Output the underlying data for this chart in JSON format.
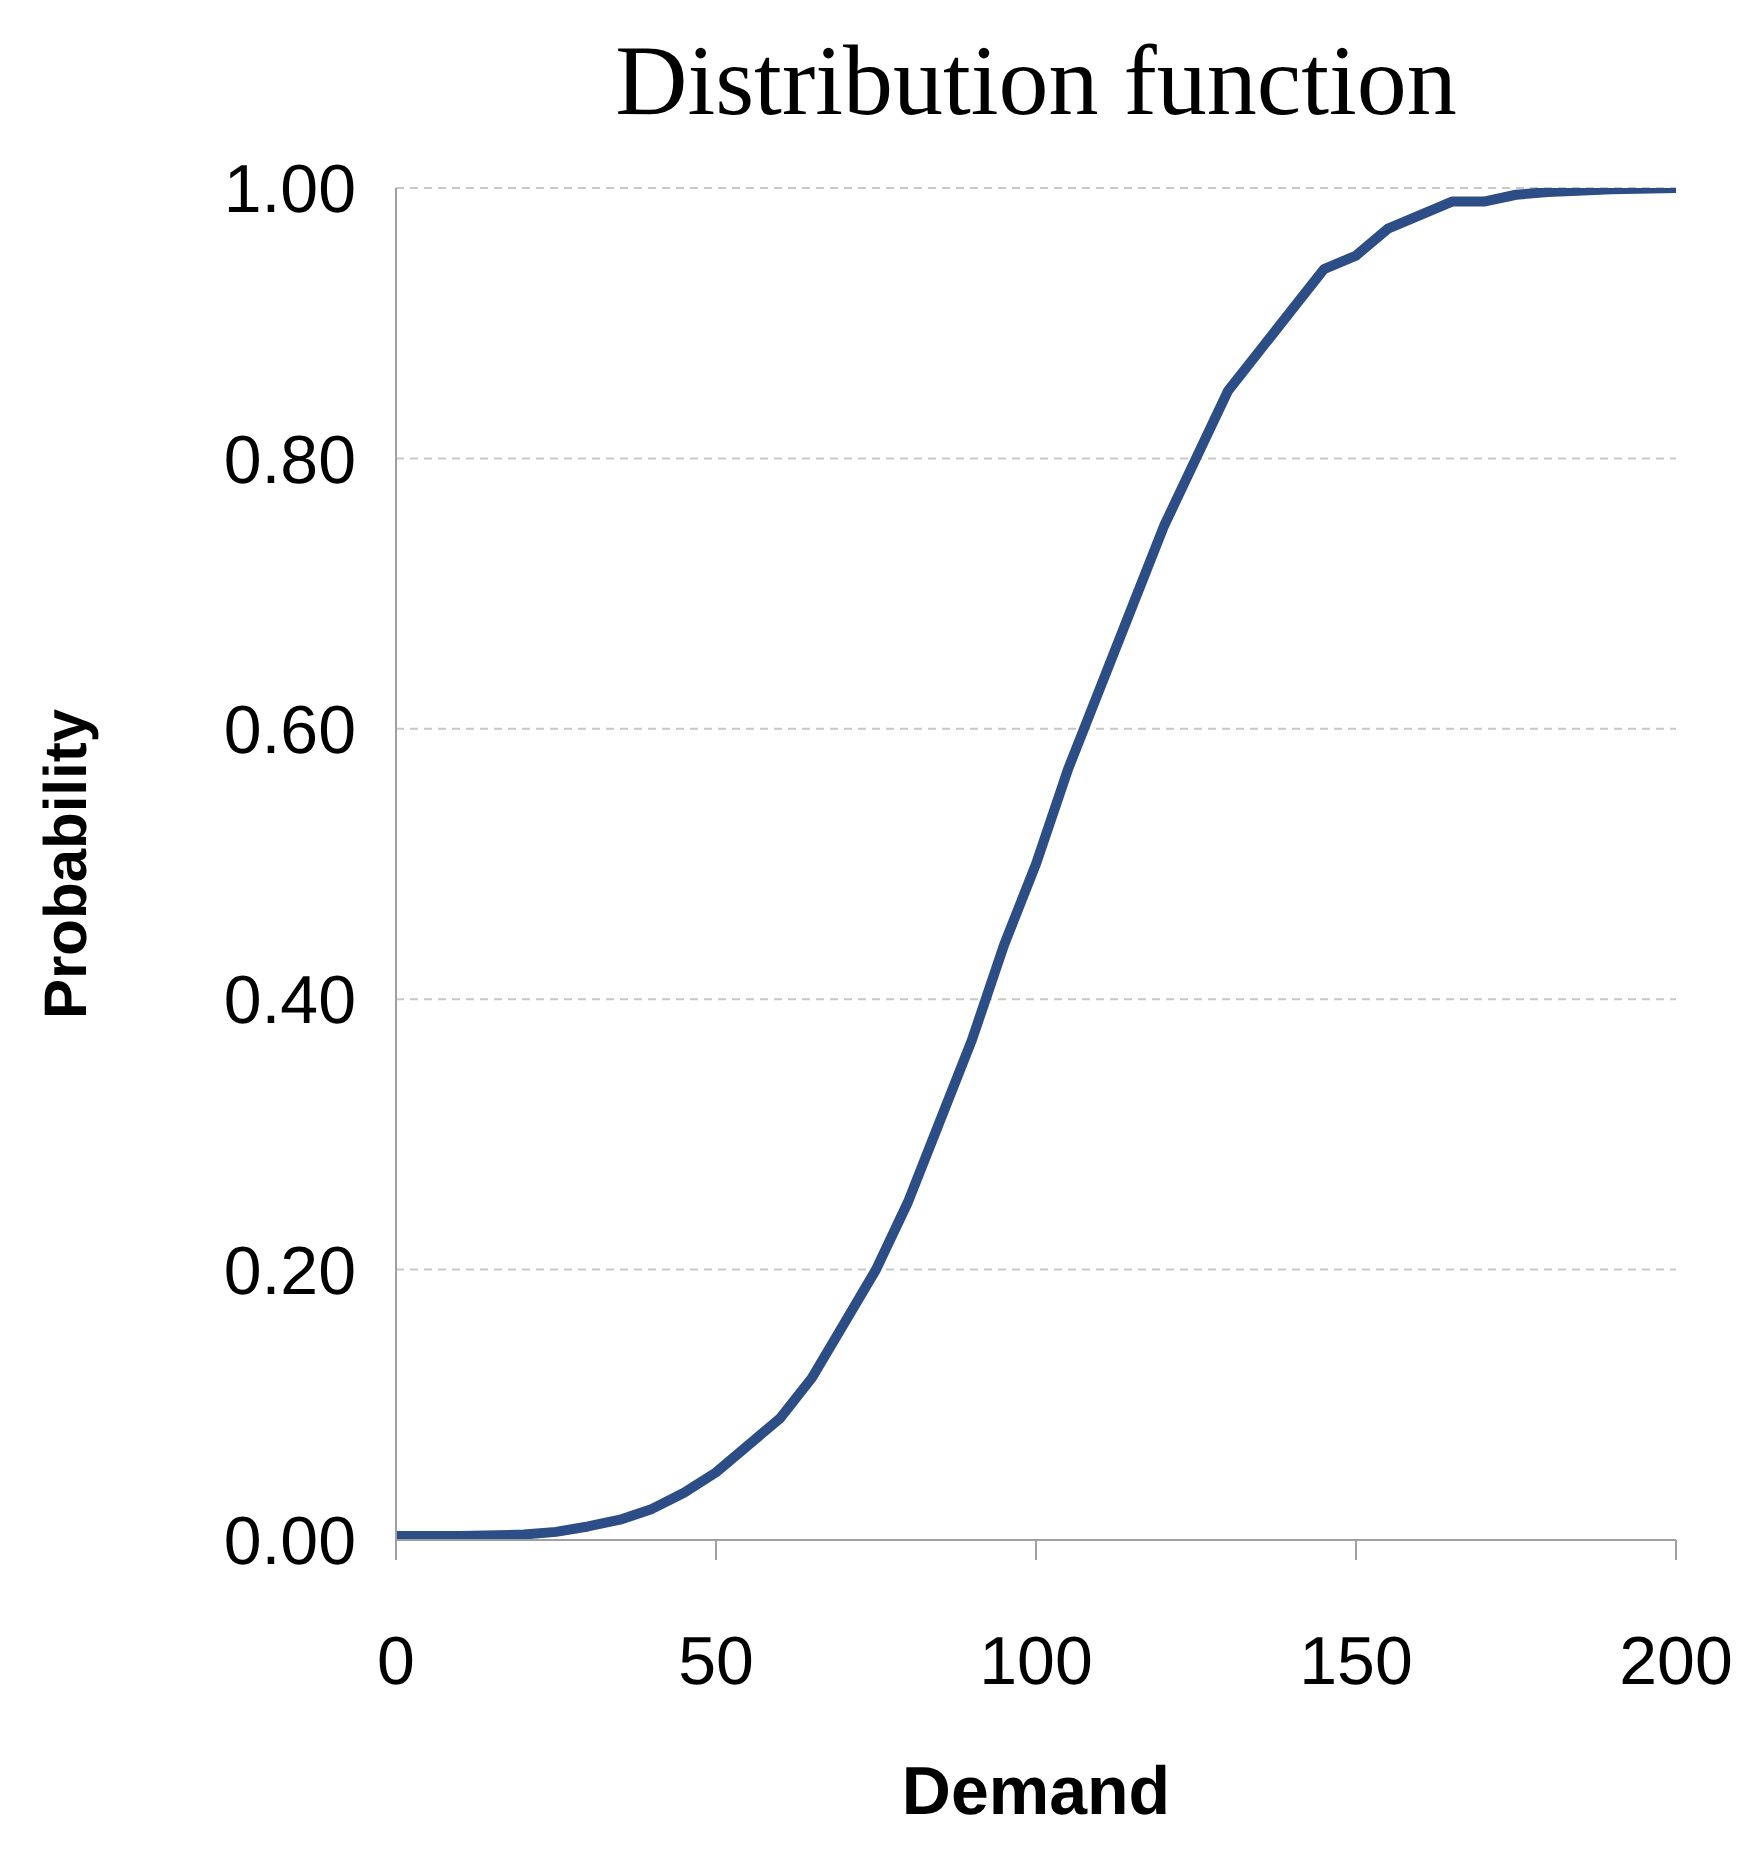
{
  "chart_data": {
    "type": "line",
    "title": "Distribution function",
    "xlabel": "Demand",
    "ylabel": "Probability",
    "x": [
      0,
      10,
      20,
      25,
      30,
      35,
      40,
      45,
      50,
      55,
      60,
      65,
      70,
      75,
      80,
      85,
      90,
      95,
      100,
      105,
      110,
      115,
      120,
      125,
      130,
      135,
      140,
      145,
      150,
      155,
      160,
      165,
      170,
      175,
      180,
      190,
      200
    ],
    "series": [
      {
        "color": "#2c4d85",
        "values": [
          0.003,
          0.003,
          0.004,
          0.006,
          0.01,
          0.015,
          0.023,
          0.035,
          0.05,
          0.07,
          0.09,
          0.12,
          0.16,
          0.2,
          0.25,
          0.31,
          0.37,
          0.44,
          0.5,
          0.57,
          0.63,
          0.69,
          0.75,
          0.8,
          0.85,
          0.88,
          0.91,
          0.94,
          0.95,
          0.97,
          0.98,
          0.99,
          0.99,
          0.995,
          0.997,
          0.999,
          1.0
        ]
      }
    ],
    "xlim": [
      0,
      200
    ],
    "xticks": [
      0,
      50,
      100,
      150,
      200
    ],
    "ylim": [
      0,
      1
    ],
    "yticks": [
      {
        "value": 0,
        "label": "0.00"
      },
      {
        "value": 0.2,
        "label": "0.20"
      },
      {
        "value": 0.4,
        "label": "0.40"
      },
      {
        "value": 0.6,
        "label": "0.60"
      },
      {
        "value": 0.8,
        "label": "0.80"
      },
      {
        "value": 1,
        "label": "1.00"
      }
    ],
    "grid": "y",
    "legend": false,
    "marker": "none",
    "line_style": "solid"
  }
}
